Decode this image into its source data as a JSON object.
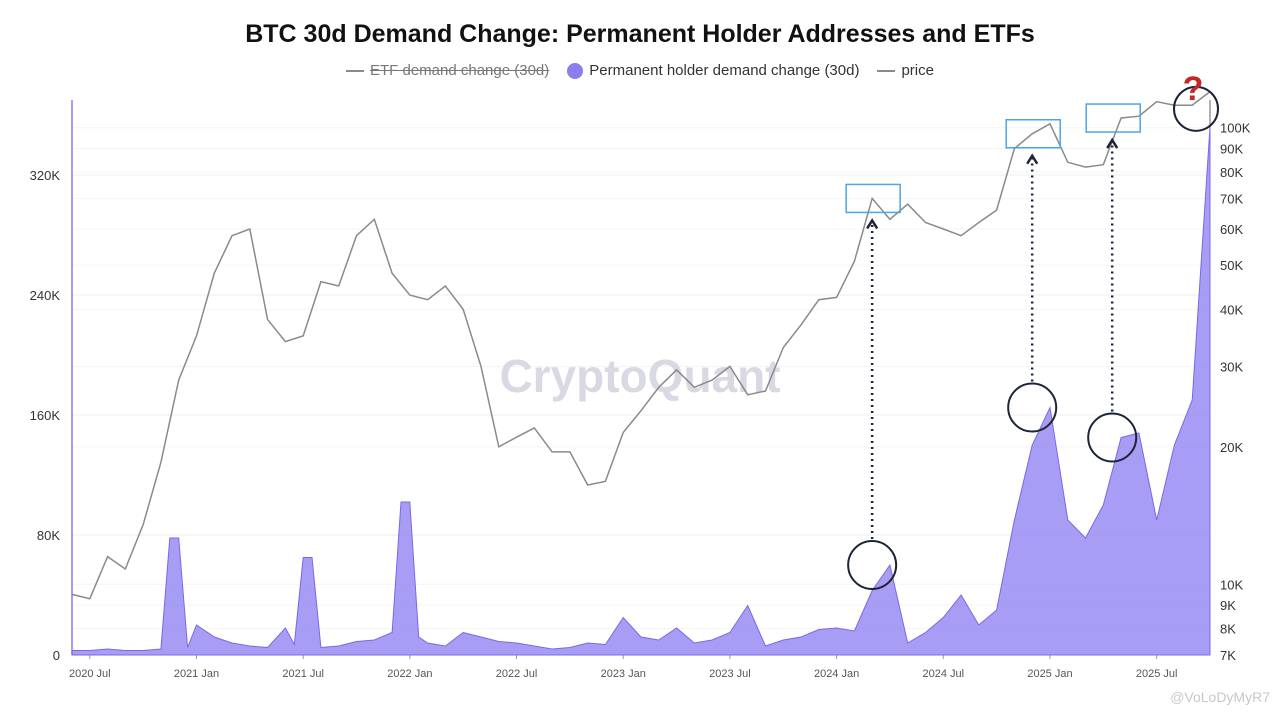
{
  "chart_data": {
    "type": "area",
    "title": "BTC 30d Demand Change: Permanent Holder Addresses and ETFs",
    "legend": [
      {
        "name": "ETF demand change (30d)",
        "style": "line",
        "hidden": true,
        "color": "#8a8a8a"
      },
      {
        "name": "Permanent holder demand change (30d)",
        "style": "dot",
        "hidden": false,
        "color": "#8b7cf0"
      },
      {
        "name": "price",
        "style": "line",
        "hidden": false,
        "color": "#8a8a8a"
      }
    ],
    "x_ticks": [
      "2020 Jul",
      "2021 Jan",
      "2021 Jul",
      "2022 Jan",
      "2022 Jul",
      "2023 Jan",
      "2023 Jul",
      "2024 Jan",
      "2024 Jul",
      "2025 Jan",
      "2025 Jul"
    ],
    "x_range": [
      "2020-06",
      "2025-10"
    ],
    "y_left": {
      "range": [
        0,
        370000
      ],
      "ticks": [
        0,
        80000,
        160000,
        240000,
        320000
      ],
      "tick_labels": [
        "0",
        "80K",
        "160K",
        "240K",
        "320K"
      ]
    },
    "y_right": {
      "scale": "log",
      "range": [
        7000,
        115000
      ],
      "ticks": [
        7000,
        8000,
        9000,
        10000,
        20000,
        30000,
        40000,
        50000,
        60000,
        70000,
        80000,
        90000,
        100000
      ],
      "tick_labels": [
        "7K",
        "8K",
        "9K",
        "10K",
        "20K",
        "30K",
        "40K",
        "50K",
        "60K",
        "70K",
        "80K",
        "90K",
        "100K"
      ]
    },
    "series": [
      {
        "name": "Permanent holder demand change (30d)",
        "axis": "left",
        "color": "#8b7cf0",
        "x": [
          "2020-06",
          "2020-07",
          "2020-08",
          "2020-09",
          "2020-10",
          "2020-11",
          "2020-11.5",
          "2020-12",
          "2020-12.5",
          "2021-01",
          "2021-02",
          "2021-03",
          "2021-04",
          "2021-05",
          "2021-06",
          "2021-06.5",
          "2021-07",
          "2021-07.5",
          "2021-08",
          "2021-09",
          "2021-10",
          "2021-11",
          "2021-12",
          "2021-12.5",
          "2022-01",
          "2022-01.5",
          "2022-02",
          "2022-03",
          "2022-04",
          "2022-05",
          "2022-06",
          "2022-07",
          "2022-08",
          "2022-09",
          "2022-10",
          "2022-11",
          "2022-12",
          "2023-01",
          "2023-02",
          "2023-03",
          "2023-04",
          "2023-05",
          "2023-06",
          "2023-07",
          "2023-08",
          "2023-09",
          "2023-10",
          "2023-11",
          "2023-12",
          "2024-01",
          "2024-02",
          "2024-03",
          "2024-04",
          "2024-05",
          "2024-06",
          "2024-07",
          "2024-08",
          "2024-09",
          "2024-10",
          "2024-11",
          "2024-12",
          "2025-01",
          "2025-02",
          "2025-03",
          "2025-04",
          "2025-05",
          "2025-06",
          "2025-07",
          "2025-08",
          "2025-09",
          "2025-10"
        ],
        "values": [
          3000,
          3000,
          4000,
          3000,
          3000,
          4000,
          78000,
          78000,
          5000,
          20000,
          12000,
          8000,
          6000,
          5000,
          18000,
          7000,
          65000,
          65000,
          5000,
          6000,
          9000,
          10000,
          15000,
          102000,
          102000,
          12000,
          8000,
          6000,
          15000,
          12000,
          9000,
          8000,
          6000,
          4000,
          5000,
          8000,
          7000,
          25000,
          12000,
          10000,
          18000,
          8000,
          10000,
          15000,
          33000,
          6000,
          10000,
          12000,
          17000,
          18000,
          16000,
          43000,
          60000,
          8000,
          15000,
          25000,
          40000,
          20000,
          30000,
          90000,
          140000,
          165000,
          90000,
          78000,
          100000,
          145000,
          148000,
          90000,
          140000,
          170000,
          352000
        ]
      },
      {
        "name": "price",
        "axis": "right",
        "color": "#8a8a8a",
        "x": [
          "2020-06",
          "2020-07",
          "2020-08",
          "2020-09",
          "2020-10",
          "2020-11",
          "2020-12",
          "2021-01",
          "2021-02",
          "2021-03",
          "2021-04",
          "2021-05",
          "2021-06",
          "2021-07",
          "2021-08",
          "2021-09",
          "2021-10",
          "2021-11",
          "2021-12",
          "2022-01",
          "2022-02",
          "2022-03",
          "2022-04",
          "2022-05",
          "2022-06",
          "2022-07",
          "2022-08",
          "2022-09",
          "2022-10",
          "2022-11",
          "2022-12",
          "2023-01",
          "2023-02",
          "2023-03",
          "2023-04",
          "2023-05",
          "2023-06",
          "2023-07",
          "2023-08",
          "2023-09",
          "2023-10",
          "2023-11",
          "2023-12",
          "2024-01",
          "2024-02",
          "2024-03",
          "2024-04",
          "2024-05",
          "2024-06",
          "2024-07",
          "2024-08",
          "2024-09",
          "2024-10",
          "2024-11",
          "2024-12",
          "2025-01",
          "2025-02",
          "2025-03",
          "2025-04",
          "2025-05",
          "2025-06",
          "2025-07",
          "2025-08",
          "2025-09",
          "2025-10"
        ],
        "values": [
          9500,
          9300,
          11500,
          10800,
          13500,
          18500,
          28000,
          35000,
          48000,
          58000,
          60000,
          38000,
          34000,
          35000,
          46000,
          45000,
          58000,
          63000,
          48000,
          43000,
          42000,
          45000,
          40000,
          30000,
          20000,
          21000,
          22000,
          19500,
          19500,
          16500,
          16800,
          21500,
          24000,
          27000,
          29500,
          27000,
          28000,
          30000,
          26000,
          26500,
          33000,
          37000,
          42000,
          42500,
          51000,
          70000,
          63000,
          68000,
          62000,
          60000,
          58000,
          62000,
          66000,
          90000,
          97000,
          102000,
          84000,
          82000,
          83000,
          105000,
          106000,
          114000,
          112000,
          112000,
          120000
        ]
      }
    ],
    "watermark": "CryptoQuant",
    "credit": "@VoLoDyMyR7",
    "annotation": "?"
  }
}
